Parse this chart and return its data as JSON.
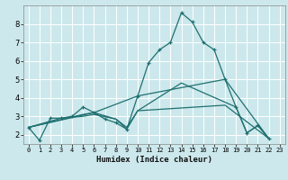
{
  "xlabel": "Humidex (Indice chaleur)",
  "bg_color": "#cce8ec",
  "line_color": "#1f7070",
  "grid_color": "#ffffff",
  "xlim_min": -0.5,
  "xlim_max": 23.5,
  "ylim_min": 1.5,
  "ylim_max": 9.0,
  "yticks": [
    2,
    3,
    4,
    5,
    6,
    7,
    8
  ],
  "xtick_vals": [
    0,
    1,
    2,
    3,
    4,
    5,
    6,
    7,
    8,
    9,
    10,
    11,
    12,
    13,
    14,
    15,
    16,
    17,
    18,
    19,
    20,
    21,
    22,
    23
  ],
  "xtick_labels": [
    "0",
    "1",
    "2",
    "3",
    "4",
    "5",
    "6",
    "7",
    "8",
    "9",
    "10",
    "11",
    "12",
    "13",
    "14",
    "15",
    "16",
    "17",
    "18",
    "19",
    "20",
    "21",
    "22",
    "23"
  ],
  "line1_x": [
    0,
    1,
    2,
    3,
    4,
    5,
    6,
    7,
    8,
    9,
    10,
    11,
    12,
    13,
    14,
    15,
    16,
    17,
    18,
    19,
    20,
    21,
    22
  ],
  "line1_y": [
    2.4,
    1.7,
    2.9,
    2.9,
    3.0,
    3.5,
    3.2,
    2.85,
    2.65,
    2.3,
    4.1,
    5.9,
    6.6,
    7.0,
    8.6,
    8.1,
    7.0,
    6.6,
    5.0,
    3.5,
    2.1,
    2.5,
    1.8
  ],
  "line2_x": [
    0,
    6,
    10,
    18,
    22
  ],
  "line2_y": [
    2.4,
    3.2,
    4.1,
    5.0,
    1.8
  ],
  "line3_x": [
    0,
    5,
    6,
    8,
    9,
    10,
    14,
    19,
    20,
    21,
    22
  ],
  "line3_y": [
    2.4,
    3.1,
    3.2,
    2.85,
    2.3,
    3.3,
    4.8,
    3.5,
    2.1,
    2.5,
    1.8
  ],
  "line4_x": [
    0,
    3,
    5,
    6,
    8,
    9,
    10,
    18,
    22
  ],
  "line4_y": [
    2.4,
    2.9,
    3.0,
    3.1,
    2.85,
    2.4,
    3.3,
    3.6,
    1.8
  ]
}
